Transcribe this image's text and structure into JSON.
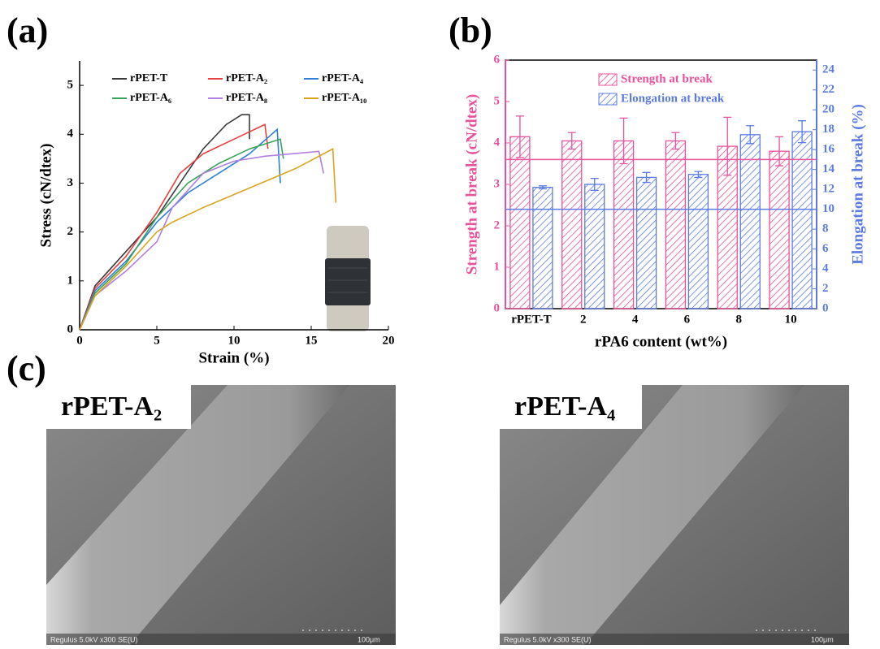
{
  "panels": [
    "(a)",
    "(b)",
    "(c)"
  ],
  "chart_data": [
    {
      "type": "line",
      "xlabel": "Strain (%)",
      "ylabel": "Stress (cN/dtex)",
      "xlim": [
        0,
        20
      ],
      "xticks": [
        0,
        5,
        10,
        15,
        20
      ],
      "ylim": [
        0,
        5.5
      ],
      "yticks": [
        0,
        1,
        2,
        3,
        4,
        5
      ],
      "grid": false,
      "legend": "top",
      "series": [
        {
          "name": "rPET-T",
          "color": "#3a3a3a",
          "x": [
            0,
            1,
            3,
            5,
            6.5,
            8,
            9.5,
            10.5,
            11,
            11
          ],
          "values": [
            0,
            0.9,
            1.6,
            2.3,
            3,
            3.7,
            4.2,
            4.4,
            4.4,
            3.9
          ]
        },
        {
          "name": "rPET-A₂",
          "color": "#e8413f",
          "x": [
            0,
            1,
            3,
            5,
            6.5,
            8,
            10,
            12,
            12.2
          ],
          "values": [
            0,
            0.85,
            1.5,
            2.4,
            3.2,
            3.6,
            3.9,
            4.2,
            3.7
          ]
        },
        {
          "name": "rPET-A₄",
          "color": "#2f7fd8",
          "x": [
            0,
            1,
            3,
            5,
            7,
            9,
            11,
            12.8,
            13
          ],
          "values": [
            0,
            0.8,
            1.4,
            2.2,
            2.8,
            3.2,
            3.6,
            4.1,
            3.0
          ]
        },
        {
          "name": "rPET-A₆",
          "color": "#3aa35a",
          "x": [
            0,
            1,
            3,
            5,
            7,
            9,
            11,
            13,
            13.2
          ],
          "values": [
            0,
            0.75,
            1.35,
            2.3,
            3.0,
            3.4,
            3.7,
            3.9,
            3.5
          ]
        },
        {
          "name": "rPET-A₈",
          "color": "#b07fe0",
          "x": [
            0,
            1,
            3,
            5,
            6,
            8,
            10,
            12,
            15.5,
            15.8
          ],
          "values": [
            0,
            0.7,
            1.2,
            1.8,
            2.5,
            3.2,
            3.45,
            3.55,
            3.65,
            3.2
          ]
        },
        {
          "name": "rPET-A₁₀",
          "color": "#d9a520",
          "x": [
            0,
            1,
            3,
            5,
            6,
            8,
            11,
            14,
            16.4,
            16.6
          ],
          "values": [
            0,
            0.7,
            1.3,
            2.0,
            2.2,
            2.5,
            2.9,
            3.3,
            3.7,
            2.6
          ]
        }
      ]
    },
    {
      "type": "bar",
      "xlabel": "rPA6 content (wt%)",
      "ylabel": "Strength at break (cN/dtex)",
      "y2label": "Elongation at break (%)",
      "categories": [
        "rPET-T",
        "2",
        "4",
        "6",
        "8",
        "10"
      ],
      "ylim": [
        0,
        6
      ],
      "yticks": [
        0,
        1,
        2,
        3,
        4,
        5,
        6
      ],
      "y2lim": [
        0,
        25
      ],
      "y2ticks": [
        0,
        2,
        4,
        6,
        8,
        10,
        12,
        14,
        16,
        18,
        20,
        22,
        24
      ],
      "legend": "top",
      "series": [
        {
          "name": "Strength at break",
          "color": "#e8529a",
          "values": [
            4.15,
            4.05,
            4.05,
            4.05,
            3.92,
            3.8
          ],
          "errors": [
            0.5,
            0.2,
            0.55,
            0.2,
            0.7,
            0.35
          ]
        },
        {
          "name": "Elongation at break",
          "color": "#5b7be0",
          "axis": "y2",
          "values": [
            12.2,
            12.5,
            13.2,
            13.5,
            17.5,
            17.8
          ],
          "errors": [
            0.15,
            0.6,
            0.5,
            0.3,
            0.9,
            1.1
          ]
        }
      ],
      "reference_lines": [
        {
          "value": 3.6,
          "axis": "y",
          "color": "#e8529a"
        },
        {
          "value": 10,
          "axis": "y2",
          "color": "#5b7be0"
        }
      ]
    }
  ],
  "images": [
    {
      "label": "rPET-A₂",
      "info": "Regulus 5.0kV x300 SE(U)",
      "scale": "100μm"
    },
    {
      "label": "rPET-A₄",
      "info": "Regulus 5.0kV x300 SE(U)",
      "scale": "100μm"
    }
  ]
}
